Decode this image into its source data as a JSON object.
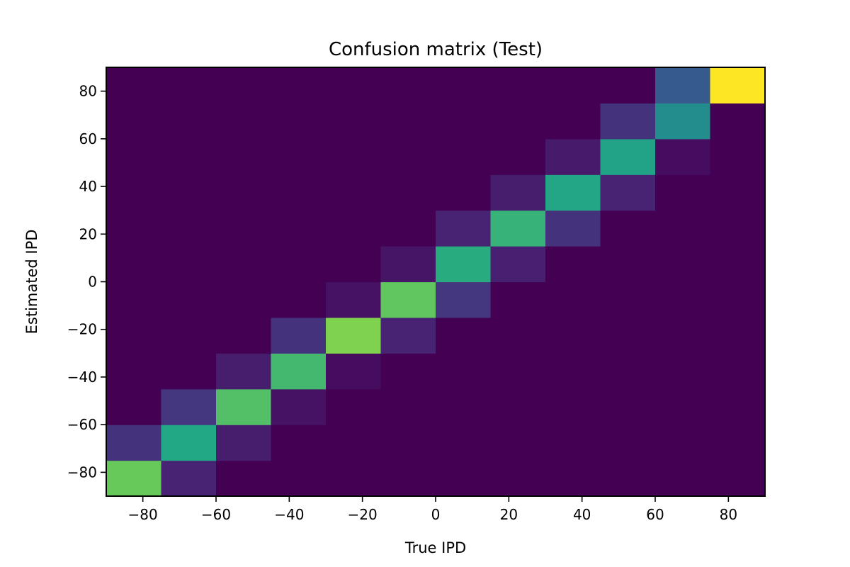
{
  "chart_data": {
    "type": "heatmap",
    "title": "Confusion matrix (Test)",
    "xlabel": "True IPD",
    "ylabel": "Estimated IPD",
    "xlim": [
      -90,
      90
    ],
    "ylim": [
      -90,
      90
    ],
    "bin_edges": [
      -90,
      -75,
      -60,
      -45,
      -30,
      -15,
      0,
      15,
      30,
      45,
      60,
      75,
      90
    ],
    "xticks": [
      {
        "value": -80,
        "label": "−80"
      },
      {
        "value": -60,
        "label": "−60"
      },
      {
        "value": -40,
        "label": "−40"
      },
      {
        "value": -20,
        "label": "−20"
      },
      {
        "value": 0,
        "label": "0"
      },
      {
        "value": 20,
        "label": "20"
      },
      {
        "value": 40,
        "label": "40"
      },
      {
        "value": 60,
        "label": "60"
      },
      {
        "value": 80,
        "label": "80"
      }
    ],
    "yticks": [
      {
        "value": -80,
        "label": "−80"
      },
      {
        "value": -60,
        "label": "−60"
      },
      {
        "value": -40,
        "label": "−40"
      },
      {
        "value": -20,
        "label": "−20"
      },
      {
        "value": 0,
        "label": "0"
      },
      {
        "value": 20,
        "label": "20"
      },
      {
        "value": 40,
        "label": "40"
      },
      {
        "value": 60,
        "label": "60"
      },
      {
        "value": 80,
        "label": "80"
      }
    ],
    "colormap": "viridis",
    "grid": false,
    "legend": "none",
    "values": [
      [
        0.85,
        0.12,
        0.0,
        0.0,
        0.0,
        0.0,
        0.0,
        0.0,
        0.0,
        0.0,
        0.0,
        0.0
      ],
      [
        0.18,
        0.75,
        0.1,
        0.0,
        0.0,
        0.0,
        0.0,
        0.0,
        0.0,
        0.0,
        0.0,
        0.0
      ],
      [
        0.0,
        0.2,
        0.82,
        0.06,
        0.0,
        0.0,
        0.0,
        0.0,
        0.0,
        0.0,
        0.0,
        0.0
      ],
      [
        0.0,
        0.0,
        0.1,
        0.8,
        0.04,
        0.0,
        0.0,
        0.0,
        0.0,
        0.0,
        0.0,
        0.0
      ],
      [
        0.0,
        0.0,
        0.0,
        0.18,
        0.88,
        0.12,
        0.0,
        0.0,
        0.0,
        0.0,
        0.0,
        0.0
      ],
      [
        0.0,
        0.0,
        0.0,
        0.0,
        0.06,
        0.84,
        0.2,
        0.0,
        0.0,
        0.0,
        0.0,
        0.0
      ],
      [
        0.0,
        0.0,
        0.0,
        0.0,
        0.0,
        0.07,
        0.76,
        0.11,
        0.0,
        0.0,
        0.0,
        0.0
      ],
      [
        0.0,
        0.0,
        0.0,
        0.0,
        0.0,
        0.0,
        0.12,
        0.78,
        0.18,
        0.0,
        0.0,
        0.0
      ],
      [
        0.0,
        0.0,
        0.0,
        0.0,
        0.0,
        0.0,
        0.0,
        0.1,
        0.74,
        0.12,
        0.0,
        0.0
      ],
      [
        0.0,
        0.0,
        0.0,
        0.0,
        0.0,
        0.0,
        0.0,
        0.0,
        0.09,
        0.72,
        0.04,
        0.0
      ],
      [
        0.0,
        0.0,
        0.0,
        0.0,
        0.0,
        0.0,
        0.0,
        0.0,
        0.0,
        0.18,
        0.6,
        0.0
      ],
      [
        0.0,
        0.0,
        0.0,
        0.0,
        0.0,
        0.0,
        0.0,
        0.0,
        0.0,
        0.0,
        0.35,
        1.0
      ]
    ]
  }
}
